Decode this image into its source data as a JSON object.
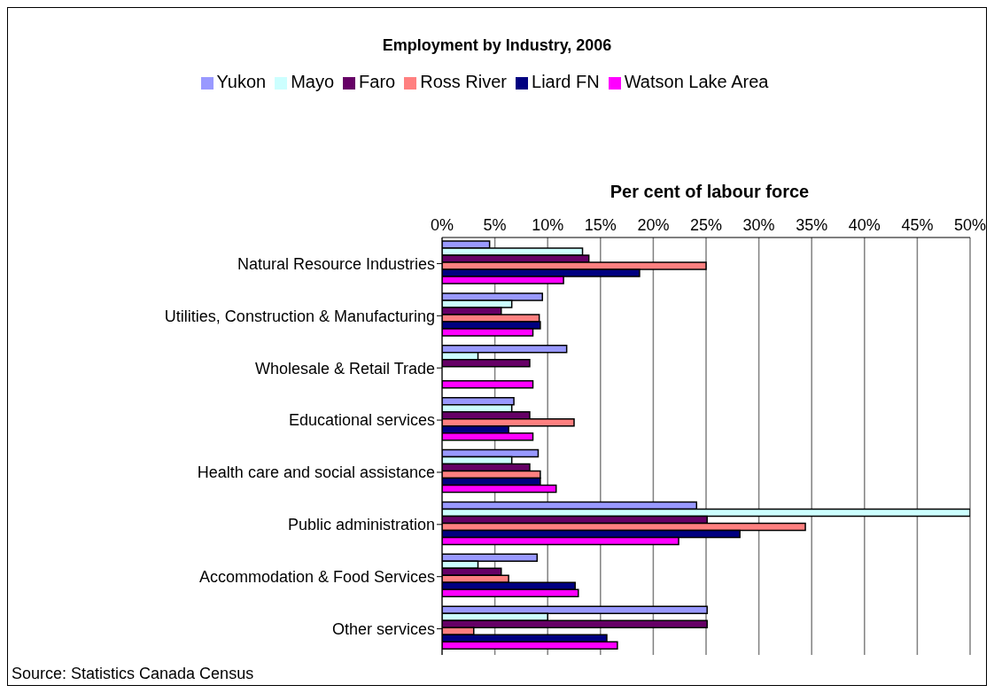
{
  "chart_data": {
    "type": "bar",
    "orientation": "horizontal",
    "title": "Employment by Industry, 2006",
    "xlabel": "Per cent of labour force",
    "categories": [
      "Natural Resource Industries",
      "Utilities, Construction & Manufacturing",
      "Wholesale & Retail Trade",
      "Educational services",
      "Health care and social assistance",
      "Public administration",
      "Accommodation & Food Services",
      "Other services"
    ],
    "series": [
      {
        "name": "Yukon",
        "color": "#9999ff",
        "values": [
          4.5,
          9.5,
          11.8,
          6.8,
          9.1,
          24.1,
          9.0,
          25.1
        ]
      },
      {
        "name": "Mayo",
        "color": "#ccffff",
        "values": [
          13.3,
          6.6,
          3.4,
          6.6,
          6.6,
          50,
          3.4,
          10.0
        ]
      },
      {
        "name": "Faro",
        "color": "#660066",
        "values": [
          13.9,
          5.6,
          8.3,
          8.3,
          8.3,
          25.1,
          5.6,
          25.1
        ]
      },
      {
        "name": "Ross River",
        "color": "#ff8080",
        "values": [
          25,
          9.2,
          null,
          12.5,
          9.3,
          34.4,
          6.3,
          3.0
        ]
      },
      {
        "name": "Liard FN",
        "color": "#000080",
        "values": [
          18.7,
          9.3,
          null,
          6.3,
          9.3,
          28.2,
          12.6,
          15.6
        ]
      },
      {
        "name": "Watson Lake Area",
        "color": "#ff00ff",
        "values": [
          11.5,
          8.6,
          8.6,
          8.6,
          10.8,
          22.4,
          12.9,
          16.6
        ]
      }
    ],
    "xlim": [
      0,
      50
    ],
    "xticks": [
      {
        "value": 0,
        "label": "0%"
      },
      {
        "value": 5,
        "label": "5%"
      },
      {
        "value": 10,
        "label": "10%"
      },
      {
        "value": 15,
        "label": "15%"
      },
      {
        "value": 20,
        "label": "20%"
      },
      {
        "value": 25,
        "label": "25%"
      },
      {
        "value": 30,
        "label": "30%"
      },
      {
        "value": 35,
        "label": "35%"
      },
      {
        "value": 40,
        "label": "40%"
      },
      {
        "value": 45,
        "label": "45%"
      },
      {
        "value": 50,
        "label": "50%"
      }
    ],
    "grid": "x",
    "legend": "top",
    "annotations": [
      "Source: Statistics Canada Census"
    ]
  }
}
